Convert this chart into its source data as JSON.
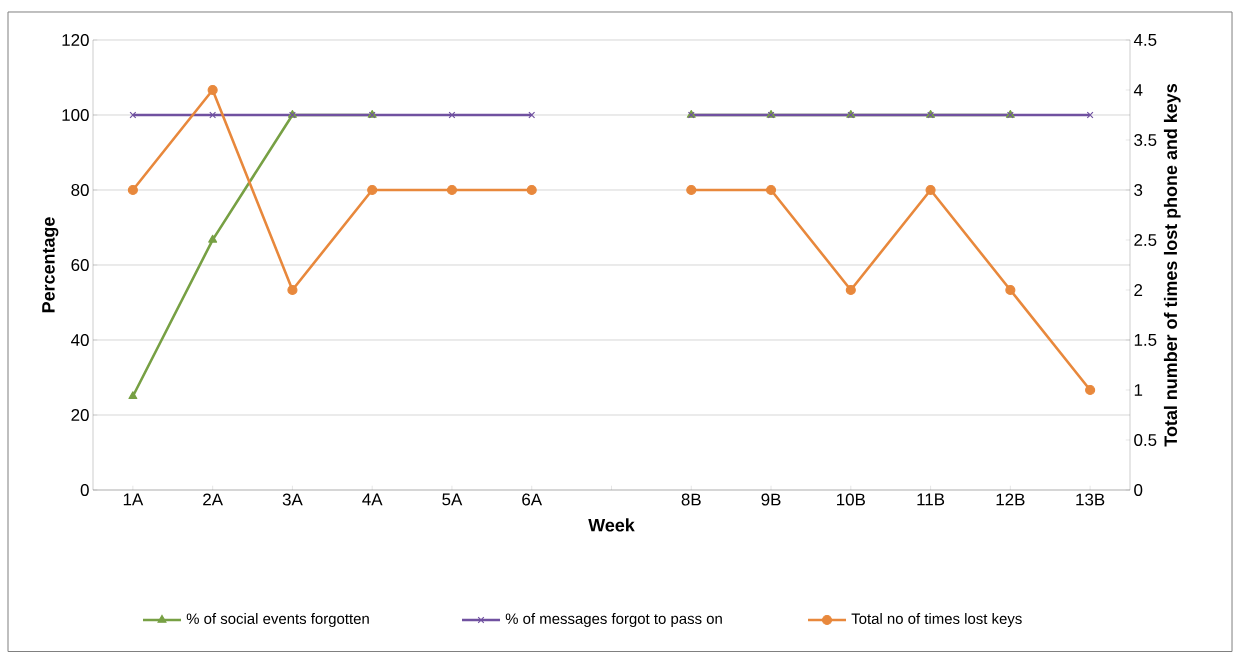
{
  "chart_data": {
    "type": "line",
    "xlabel": "Week",
    "ylabel": "Percentage",
    "y2label": "Total number of times lost phone and keys",
    "categories": [
      "1A",
      "2A",
      "3A",
      "4A",
      "5A",
      "6A",
      null,
      "8B",
      "9B",
      "10B",
      "11B",
      "12B",
      "13B"
    ],
    "series": [
      {
        "name": "% of social events forgotten",
        "color": "#77a044",
        "marker": "triangle",
        "values": [
          25,
          66.7,
          100,
          100,
          null,
          null,
          null,
          100,
          100,
          100,
          100,
          100,
          null
        ]
      },
      {
        "name": "% of messages forgot to pass on",
        "color": "#7051a0",
        "marker": "cross",
        "values": [
          100,
          100,
          100,
          100,
          100,
          100,
          null,
          100,
          100,
          100,
          100,
          100,
          100
        ]
      },
      {
        "name": "Total no of times lost keys",
        "color": "#e8883c",
        "marker": "circle",
        "axis": "y2",
        "values": [
          3,
          4,
          2,
          3,
          3,
          3,
          null,
          3,
          3,
          2,
          3,
          2,
          1
        ]
      }
    ],
    "ylim": [
      0,
      120
    ],
    "yticks": [
      0,
      20,
      40,
      60,
      80,
      100,
      120
    ],
    "y2lim": [
      0,
      4.5
    ],
    "y2ticks": [
      0,
      0.5,
      1,
      1.5,
      2,
      2.5,
      3,
      3.5,
      4,
      4.5
    ],
    "grid": "y",
    "legend": "bottom",
    "line_style": "solid"
  }
}
